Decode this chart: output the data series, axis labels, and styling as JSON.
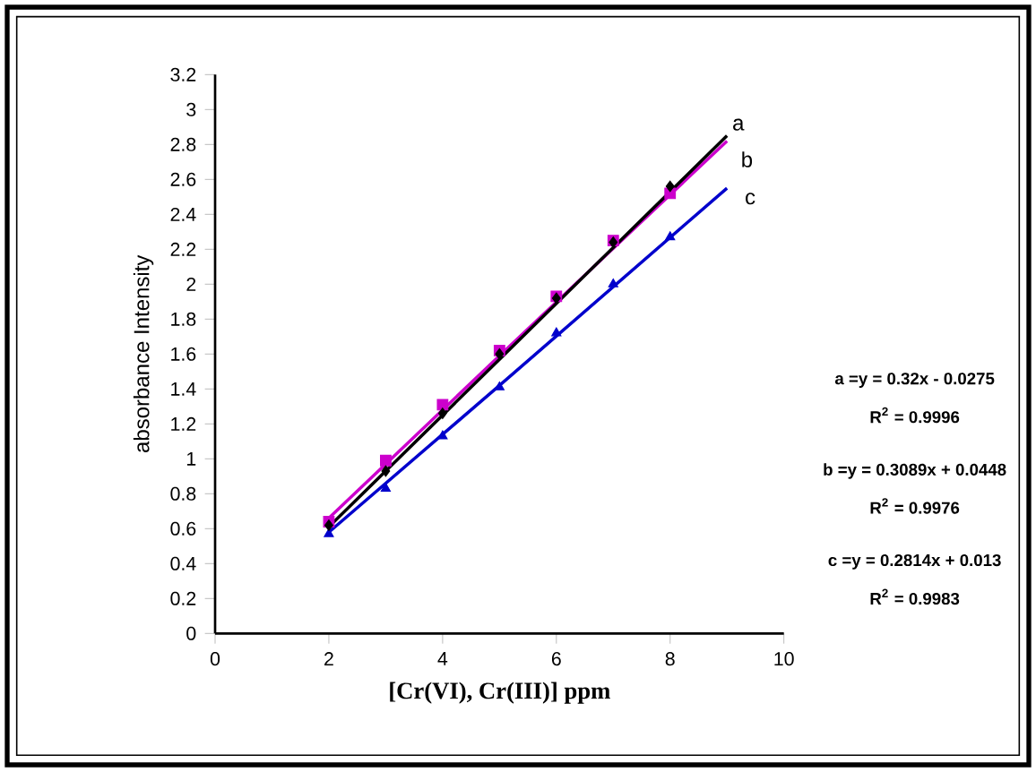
{
  "chart_data": {
    "type": "scatter",
    "xlabel": "[Cr(VI), Cr(III)] ppm",
    "ylabel": "absorbance Intensity",
    "xlim": [
      0,
      10
    ],
    "xticks": [
      0,
      2,
      4,
      6,
      8,
      10
    ],
    "ylim": [
      0,
      3.2
    ],
    "yticks": [
      0,
      0.2,
      0.4,
      0.6,
      0.8,
      1,
      1.2,
      1.4,
      1.6,
      1.8,
      2,
      2.2,
      2.4,
      2.6,
      2.8,
      3,
      3.2
    ],
    "x": [
      2,
      3,
      4,
      5,
      6,
      7,
      8
    ],
    "series": [
      {
        "color": "#000000",
        "marker": "diamond",
        "values": [
          0.62,
          0.93,
          1.26,
          1.6,
          1.92,
          2.24,
          2.56
        ]
      },
      {
        "color": "#cc00cc",
        "marker": "square",
        "values": [
          0.64,
          0.99,
          1.31,
          1.62,
          1.93,
          2.25,
          2.52
        ]
      },
      {
        "color": "#0000cc",
        "marker": "triangle",
        "values": [
          0.57,
          0.83,
          1.13,
          1.41,
          1.72,
          2.0,
          2.27
        ]
      },
      {
        "type": "line",
        "color": "#000000",
        "marker": "none",
        "x": [
          2,
          5,
          9
        ],
        "values": [
          0.61,
          1.57,
          2.85
        ]
      },
      {
        "type": "line",
        "color": "#cc00cc",
        "marker": "none",
        "x": [
          2,
          5,
          9
        ],
        "values": [
          0.66,
          1.59,
          2.82
        ]
      },
      {
        "type": "line",
        "color": "#0000cc",
        "marker": "none",
        "x": [
          2,
          5,
          9
        ],
        "values": [
          0.58,
          1.42,
          2.55
        ]
      }
    ],
    "annotations": [
      {
        "text": "a",
        "x": 9,
        "y": 2.85
      },
      {
        "text": "b",
        "x": 8.9,
        "y": 2.79
      },
      {
        "text": "c",
        "x": 8.8,
        "y": 2.49
      },
      "a =y = 0.32x - 0.0275",
      "R$^{2}$ = 0.9996",
      "b =y = 0.3089x + 0.0448",
      "R$^{2}$ = 0.9976",
      "c =y = 0.2814x + 0.013",
      "R$^{2}$ = 0.9983"
    ]
  }
}
